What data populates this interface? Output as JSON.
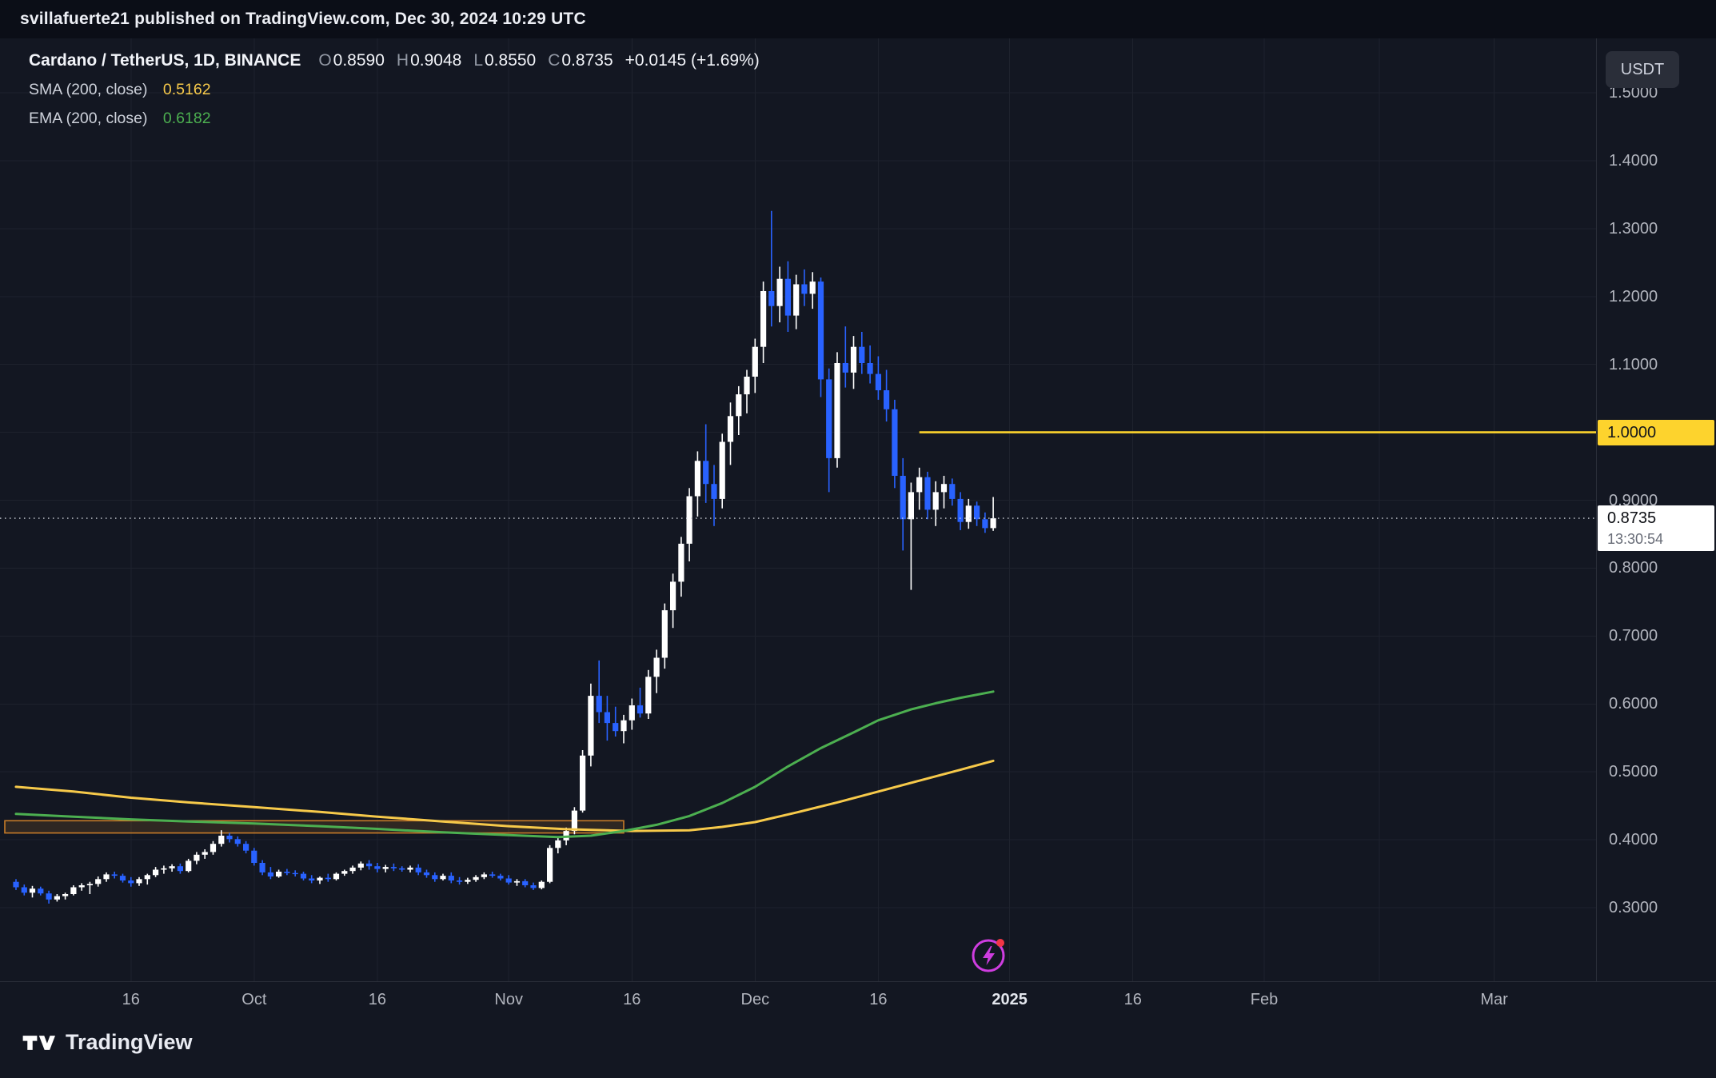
{
  "publish_bar": {
    "text": "svillafuerte21 published on TradingView.com, Dec 30, 2024 10:29 UTC"
  },
  "legend": {
    "title": "Cardano / TetherUS, 1D, BINANCE",
    "ohlc": [
      {
        "letter": "O",
        "value": "0.8590"
      },
      {
        "letter": "H",
        "value": "0.9048"
      },
      {
        "letter": "L",
        "value": "0.8550"
      },
      {
        "letter": "C",
        "value": "0.8735"
      }
    ],
    "change": "+0.0145 (+1.69%)",
    "sma": {
      "label": "SMA (200, close)",
      "value": "0.5162"
    },
    "ema": {
      "label": "EMA (200, close)",
      "value": "0.6182"
    }
  },
  "price_axis": {
    "currency_button": "USDT",
    "labels": [
      "1.5000",
      "1.4000",
      "1.3000",
      "1.2000",
      "1.1000",
      "1.0000",
      "0.9000",
      "0.8000",
      "0.7000",
      "0.6000",
      "0.5000",
      "0.4000",
      "0.3000"
    ],
    "level_line": {
      "price": 1.0,
      "label": "1.0000"
    },
    "last_price": {
      "price": 0.8735,
      "label": "0.8735",
      "countdown": "13:30:54"
    }
  },
  "time_axis": {
    "labels": [
      {
        "text": "16",
        "i": 14
      },
      {
        "text": "Oct",
        "i": 29
      },
      {
        "text": "16",
        "i": 44
      },
      {
        "text": "Nov",
        "i": 60
      },
      {
        "text": "16",
        "i": 75
      },
      {
        "text": "Dec",
        "i": 90
      },
      {
        "text": "16",
        "i": 105
      },
      {
        "text": "2025",
        "i": 121,
        "major": true
      },
      {
        "text": "16",
        "i": 136
      },
      {
        "text": "Feb",
        "i": 152
      },
      {
        "text": "Mar",
        "i": 180
      }
    ],
    "extra_gridlines": [
      166
    ]
  },
  "footer": {
    "brand": "TradingView"
  },
  "colors": {
    "background": "#131722",
    "topbar_background": "#0b0e17",
    "grid": "#1e222d",
    "axis_text": "#b2b5be",
    "up": "#ffffff",
    "down": "#2962ff",
    "sma": "#f6c94a",
    "ema": "#4caf50",
    "hline": "#fdd32d",
    "box_stroke": "#c77b28",
    "box_fill": "rgba(199,123,40,0.16)",
    "last_price_line": "#d7dae2"
  },
  "chart_data": {
    "type": "candlestick",
    "title": "Cardano / TetherUS, 1D, BINANCE",
    "symbol": "ADA/USDT",
    "timeframe": "1D",
    "exchange": "BINANCE",
    "ylim": [
      0.255,
      1.56
    ],
    "x_range": [
      "2024-09-02",
      "2024-12-30"
    ],
    "grid": true,
    "candles": [
      [
        "09-02",
        0.338,
        0.342,
        0.326,
        0.33
      ],
      [
        "09-03",
        0.33,
        0.334,
        0.318,
        0.322
      ],
      [
        "09-04",
        0.322,
        0.332,
        0.315,
        0.328
      ],
      [
        "09-05",
        0.328,
        0.331,
        0.318,
        0.321
      ],
      [
        "09-06",
        0.321,
        0.325,
        0.306,
        0.312
      ],
      [
        "09-07",
        0.312,
        0.32,
        0.309,
        0.317
      ],
      [
        "09-08",
        0.317,
        0.322,
        0.312,
        0.32
      ],
      [
        "09-09",
        0.32,
        0.333,
        0.318,
        0.33
      ],
      [
        "09-10",
        0.33,
        0.336,
        0.325,
        0.333
      ],
      [
        "09-11",
        0.333,
        0.338,
        0.32,
        0.335
      ],
      [
        "09-12",
        0.335,
        0.346,
        0.331,
        0.342
      ],
      [
        "09-13",
        0.342,
        0.352,
        0.338,
        0.349
      ],
      [
        "09-14",
        0.349,
        0.353,
        0.343,
        0.347
      ],
      [
        "09-15",
        0.347,
        0.35,
        0.337,
        0.34
      ],
      [
        "09-16",
        0.34,
        0.345,
        0.331,
        0.336
      ],
      [
        "09-17",
        0.336,
        0.345,
        0.332,
        0.342
      ],
      [
        "09-18",
        0.342,
        0.35,
        0.334,
        0.348
      ],
      [
        "09-19",
        0.348,
        0.36,
        0.345,
        0.356
      ],
      [
        "09-20",
        0.356,
        0.362,
        0.35,
        0.358
      ],
      [
        "09-21",
        0.358,
        0.364,
        0.353,
        0.361
      ],
      [
        "09-22",
        0.361,
        0.365,
        0.35,
        0.354
      ],
      [
        "09-23",
        0.354,
        0.372,
        0.352,
        0.369
      ],
      [
        "09-24",
        0.369,
        0.382,
        0.364,
        0.378
      ],
      [
        "09-25",
        0.378,
        0.386,
        0.372,
        0.382
      ],
      [
        "09-26",
        0.382,
        0.398,
        0.378,
        0.394
      ],
      [
        "09-27",
        0.394,
        0.414,
        0.39,
        0.406
      ],
      [
        "09-28",
        0.406,
        0.41,
        0.396,
        0.401
      ],
      [
        "09-29",
        0.401,
        0.405,
        0.39,
        0.394
      ],
      [
        "09-30",
        0.394,
        0.398,
        0.38,
        0.384
      ],
      [
        "10-01",
        0.384,
        0.388,
        0.362,
        0.366
      ],
      [
        "10-02",
        0.366,
        0.37,
        0.348,
        0.352
      ],
      [
        "10-03",
        0.352,
        0.36,
        0.342,
        0.346
      ],
      [
        "10-04",
        0.346,
        0.356,
        0.344,
        0.353
      ],
      [
        "10-05",
        0.353,
        0.357,
        0.348,
        0.351
      ],
      [
        "10-06",
        0.351,
        0.355,
        0.346,
        0.35
      ],
      [
        "10-07",
        0.35,
        0.353,
        0.34,
        0.343
      ],
      [
        "10-08",
        0.343,
        0.348,
        0.336,
        0.34
      ],
      [
        "10-09",
        0.34,
        0.346,
        0.335,
        0.344
      ],
      [
        "10-10",
        0.344,
        0.35,
        0.338,
        0.342
      ],
      [
        "10-11",
        0.342,
        0.352,
        0.34,
        0.35
      ],
      [
        "10-12",
        0.35,
        0.356,
        0.347,
        0.354
      ],
      [
        "10-13",
        0.354,
        0.362,
        0.35,
        0.359
      ],
      [
        "10-14",
        0.359,
        0.368,
        0.355,
        0.365
      ],
      [
        "10-15",
        0.365,
        0.37,
        0.356,
        0.361
      ],
      [
        "10-16",
        0.361,
        0.366,
        0.352,
        0.357
      ],
      [
        "10-17",
        0.357,
        0.363,
        0.352,
        0.36
      ],
      [
        "10-18",
        0.36,
        0.365,
        0.354,
        0.358
      ],
      [
        "10-19",
        0.358,
        0.361,
        0.353,
        0.356
      ],
      [
        "10-20",
        0.356,
        0.362,
        0.352,
        0.359
      ],
      [
        "10-21",
        0.359,
        0.364,
        0.348,
        0.352
      ],
      [
        "10-22",
        0.352,
        0.356,
        0.344,
        0.348
      ],
      [
        "10-23",
        0.348,
        0.352,
        0.338,
        0.342
      ],
      [
        "10-24",
        0.342,
        0.35,
        0.34,
        0.347
      ],
      [
        "10-25",
        0.347,
        0.352,
        0.336,
        0.34
      ],
      [
        "10-26",
        0.34,
        0.345,
        0.334,
        0.338
      ],
      [
        "10-27",
        0.338,
        0.344,
        0.335,
        0.341
      ],
      [
        "10-28",
        0.341,
        0.348,
        0.338,
        0.345
      ],
      [
        "10-29",
        0.345,
        0.352,
        0.342,
        0.349
      ],
      [
        "10-30",
        0.349,
        0.353,
        0.344,
        0.347
      ],
      [
        "10-31",
        0.347,
        0.35,
        0.34,
        0.343
      ],
      [
        "11-01",
        0.343,
        0.348,
        0.334,
        0.337
      ],
      [
        "11-02",
        0.337,
        0.342,
        0.332,
        0.339
      ],
      [
        "11-03",
        0.339,
        0.342,
        0.33,
        0.333
      ],
      [
        "11-04",
        0.333,
        0.337,
        0.326,
        0.329
      ],
      [
        "11-05",
        0.329,
        0.34,
        0.327,
        0.338
      ],
      [
        "11-06",
        0.338,
        0.392,
        0.336,
        0.388
      ],
      [
        "11-07",
        0.388,
        0.404,
        0.38,
        0.399
      ],
      [
        "11-08",
        0.399,
        0.418,
        0.392,
        0.413
      ],
      [
        "11-09",
        0.413,
        0.448,
        0.408,
        0.443
      ],
      [
        "11-10",
        0.443,
        0.532,
        0.44,
        0.524
      ],
      [
        "11-11",
        0.524,
        0.63,
        0.508,
        0.612
      ],
      [
        "11-12",
        0.612,
        0.664,
        0.572,
        0.588
      ],
      [
        "11-13",
        0.588,
        0.612,
        0.546,
        0.572
      ],
      [
        "11-14",
        0.572,
        0.596,
        0.552,
        0.56
      ],
      [
        "11-15",
        0.56,
        0.584,
        0.542,
        0.576
      ],
      [
        "11-16",
        0.576,
        0.608,
        0.562,
        0.598
      ],
      [
        "11-17",
        0.598,
        0.624,
        0.58,
        0.586
      ],
      [
        "11-18",
        0.586,
        0.65,
        0.578,
        0.64
      ],
      [
        "11-19",
        0.64,
        0.68,
        0.616,
        0.668
      ],
      [
        "11-20",
        0.668,
        0.748,
        0.652,
        0.738
      ],
      [
        "11-21",
        0.738,
        0.792,
        0.712,
        0.78
      ],
      [
        "11-22",
        0.78,
        0.846,
        0.758,
        0.836
      ],
      [
        "11-23",
        0.836,
        0.918,
        0.81,
        0.906
      ],
      [
        "11-24",
        0.906,
        0.972,
        0.876,
        0.958
      ],
      [
        "11-25",
        0.958,
        1.012,
        0.896,
        0.924
      ],
      [
        "11-26",
        0.924,
        0.952,
        0.862,
        0.902
      ],
      [
        "11-27",
        0.902,
        0.998,
        0.888,
        0.986
      ],
      [
        "11-28",
        0.986,
        1.044,
        0.952,
        1.024
      ],
      [
        "11-29",
        1.024,
        1.068,
        0.996,
        1.056
      ],
      [
        "11-30",
        1.056,
        1.092,
        1.028,
        1.082
      ],
      [
        "12-01",
        1.082,
        1.138,
        1.058,
        1.126
      ],
      [
        "12-02",
        1.126,
        1.222,
        1.102,
        1.208
      ],
      [
        "12-03",
        1.208,
        1.326,
        1.156,
        1.186
      ],
      [
        "12-04",
        1.186,
        1.244,
        1.162,
        1.226
      ],
      [
        "12-05",
        1.226,
        1.252,
        1.148,
        1.172
      ],
      [
        "12-06",
        1.172,
        1.232,
        1.152,
        1.218
      ],
      [
        "12-07",
        1.218,
        1.24,
        1.186,
        1.204
      ],
      [
        "12-08",
        1.204,
        1.236,
        1.182,
        1.222
      ],
      [
        "12-09",
        1.222,
        1.228,
        1.052,
        1.078
      ],
      [
        "12-10",
        1.078,
        1.094,
        0.912,
        0.962
      ],
      [
        "12-11",
        0.962,
        1.118,
        0.948,
        1.102
      ],
      [
        "12-12",
        1.102,
        1.156,
        1.066,
        1.088
      ],
      [
        "12-13",
        1.088,
        1.142,
        1.064,
        1.126
      ],
      [
        "12-14",
        1.126,
        1.148,
        1.086,
        1.102
      ],
      [
        "12-15",
        1.102,
        1.128,
        1.072,
        1.086
      ],
      [
        "12-16",
        1.086,
        1.112,
        1.048,
        1.062
      ],
      [
        "12-17",
        1.062,
        1.092,
        1.016,
        1.034
      ],
      [
        "12-18",
        1.034,
        1.048,
        0.918,
        0.936
      ],
      [
        "12-19",
        0.936,
        0.962,
        0.826,
        0.872
      ],
      [
        "12-20",
        0.872,
        0.926,
        0.768,
        0.912
      ],
      [
        "12-21",
        0.912,
        0.948,
        0.886,
        0.934
      ],
      [
        "12-22",
        0.934,
        0.942,
        0.872,
        0.886
      ],
      [
        "12-23",
        0.886,
        0.928,
        0.862,
        0.912
      ],
      [
        "12-24",
        0.912,
        0.936,
        0.888,
        0.924
      ],
      [
        "12-25",
        0.924,
        0.932,
        0.892,
        0.902
      ],
      [
        "12-26",
        0.902,
        0.912,
        0.856,
        0.868
      ],
      [
        "12-27",
        0.868,
        0.902,
        0.858,
        0.892
      ],
      [
        "12-28",
        0.892,
        0.898,
        0.862,
        0.872
      ],
      [
        "12-29",
        0.872,
        0.882,
        0.852,
        0.859
      ],
      [
        "12-30",
        0.859,
        0.9048,
        0.855,
        0.8735
      ]
    ],
    "overlays": {
      "sma200": {
        "name": "SMA (200, close)",
        "last_value": 0.5162,
        "points": [
          [
            0,
            0.478
          ],
          [
            7,
            0.471
          ],
          [
            14,
            0.462
          ],
          [
            21,
            0.455
          ],
          [
            29,
            0.448
          ],
          [
            37,
            0.441
          ],
          [
            44,
            0.434
          ],
          [
            52,
            0.427
          ],
          [
            60,
            0.42
          ],
          [
            67,
            0.4155
          ],
          [
            75,
            0.413
          ],
          [
            82,
            0.414
          ],
          [
            86,
            0.419
          ],
          [
            90,
            0.426
          ],
          [
            95,
            0.44
          ],
          [
            100,
            0.455
          ],
          [
            105,
            0.471
          ],
          [
            110,
            0.487
          ],
          [
            115,
            0.503
          ],
          [
            119,
            0.5162
          ]
        ]
      },
      "ema200": {
        "name": "EMA (200, close)",
        "last_value": 0.6182,
        "points": [
          [
            0,
            0.438
          ],
          [
            7,
            0.434
          ],
          [
            14,
            0.43
          ],
          [
            21,
            0.427
          ],
          [
            29,
            0.424
          ],
          [
            37,
            0.42
          ],
          [
            44,
            0.416
          ],
          [
            52,
            0.411
          ],
          [
            60,
            0.407
          ],
          [
            66,
            0.404
          ],
          [
            70,
            0.406
          ],
          [
            74,
            0.413
          ],
          [
            78,
            0.422
          ],
          [
            82,
            0.435
          ],
          [
            86,
            0.454
          ],
          [
            90,
            0.478
          ],
          [
            94,
            0.508
          ],
          [
            98,
            0.535
          ],
          [
            102,
            0.558
          ],
          [
            105,
            0.576
          ],
          [
            109,
            0.592
          ],
          [
            112,
            0.601
          ],
          [
            115,
            0.609
          ],
          [
            119,
            0.6182
          ]
        ]
      },
      "hline": {
        "price": 1.0,
        "start_index": 110
      },
      "box": {
        "price_top": 0.428,
        "price_bottom": 0.41,
        "start_index": 0,
        "end_index": 74
      }
    }
  }
}
